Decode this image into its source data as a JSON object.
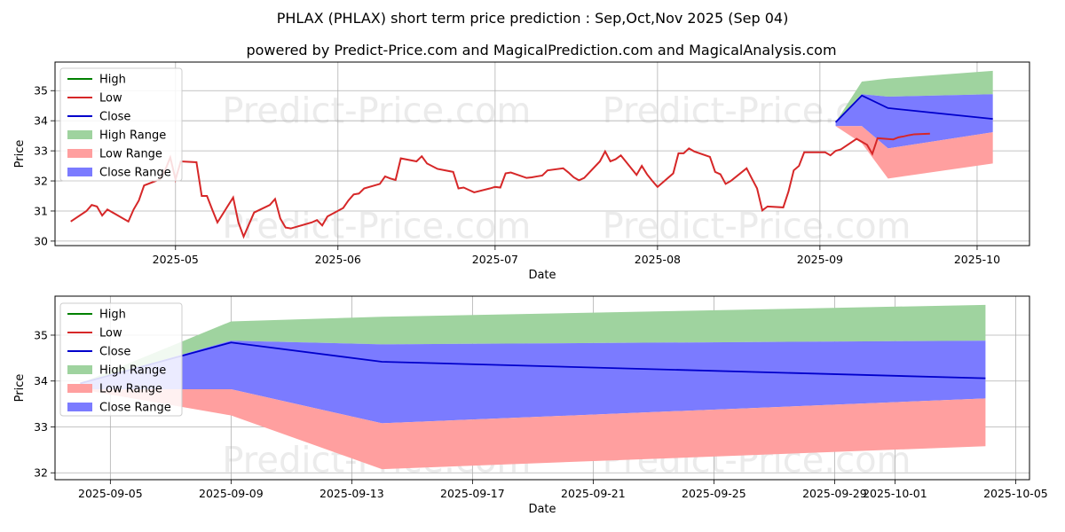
{
  "title": "PHLAX (PHLAX) short term price prediction : Sep,Oct,Nov 2025 (Sep 04)",
  "subtitle": "powered by Predict-Price.com and MagicalPrediction.com and MagicalAnalysis.com",
  "watermark": "Predict-Price.com",
  "colors": {
    "high": "#008000",
    "low": "#d62728",
    "close": "#0000cc",
    "high_range": "#9fd39f",
    "low_range": "#ff9f9f",
    "close_range": "#7b7bff",
    "grid": "#b0b0b0"
  },
  "chart_data": [
    {
      "type": "line",
      "name": "history",
      "xlabel": "Date",
      "ylabel": "Price",
      "xlim": [
        "2025-04-08",
        "2025-10-11"
      ],
      "ylim": [
        29.85,
        35.95
      ],
      "x_ticks": [
        "2025-05-01",
        "2025-06-01",
        "2025-07-01",
        "2025-08-01",
        "2025-09-01",
        "2025-10-01"
      ],
      "x_tick_labels": [
        "2025-05",
        "2025-06",
        "2025-07",
        "2025-08",
        "2025-09",
        "2025-10"
      ],
      "y_ticks": [
        30,
        31,
        32,
        33,
        34,
        35
      ],
      "grid": true,
      "legend": [
        "High",
        "Low",
        "Close",
        "High Range",
        "Low Range",
        "Close Range"
      ],
      "legend_position": "upper-left",
      "history_low": [
        [
          "2025-04-11",
          30.65
        ],
        [
          "2025-04-14",
          31.0
        ],
        [
          "2025-04-15",
          31.2
        ],
        [
          "2025-04-16",
          31.15
        ],
        [
          "2025-04-17",
          30.85
        ],
        [
          "2025-04-18",
          31.05
        ],
        [
          "2025-04-22",
          30.65
        ],
        [
          "2025-04-23",
          31.05
        ],
        [
          "2025-04-24",
          31.35
        ],
        [
          "2025-04-25",
          31.85
        ],
        [
          "2025-04-28",
          32.05
        ],
        [
          "2025-04-29",
          32.35
        ],
        [
          "2025-04-30",
          32.78
        ],
        [
          "2025-05-01",
          32.05
        ],
        [
          "2025-05-02",
          32.65
        ],
        [
          "2025-05-05",
          32.62
        ],
        [
          "2025-05-06",
          31.5
        ],
        [
          "2025-05-07",
          31.5
        ],
        [
          "2025-05-08",
          31.05
        ],
        [
          "2025-05-09",
          30.62
        ],
        [
          "2025-05-12",
          31.45
        ],
        [
          "2025-05-13",
          30.62
        ],
        [
          "2025-05-14",
          30.15
        ],
        [
          "2025-05-16",
          30.95
        ],
        [
          "2025-05-19",
          31.2
        ],
        [
          "2025-05-20",
          31.4
        ],
        [
          "2025-05-21",
          30.75
        ],
        [
          "2025-05-22",
          30.45
        ],
        [
          "2025-05-23",
          30.42
        ],
        [
          "2025-05-27",
          30.62
        ],
        [
          "2025-05-28",
          30.7
        ],
        [
          "2025-05-29",
          30.52
        ],
        [
          "2025-05-30",
          30.82
        ],
        [
          "2025-06-02",
          31.1
        ],
        [
          "2025-06-03",
          31.35
        ],
        [
          "2025-06-04",
          31.55
        ],
        [
          "2025-06-05",
          31.58
        ],
        [
          "2025-06-06",
          31.75
        ],
        [
          "2025-06-09",
          31.9
        ],
        [
          "2025-06-10",
          32.15
        ],
        [
          "2025-06-11",
          32.08
        ],
        [
          "2025-06-12",
          32.03
        ],
        [
          "2025-06-13",
          32.75
        ],
        [
          "2025-06-16",
          32.65
        ],
        [
          "2025-06-17",
          32.82
        ],
        [
          "2025-06-18",
          32.58
        ],
        [
          "2025-06-20",
          32.4
        ],
        [
          "2025-06-23",
          32.3
        ],
        [
          "2025-06-24",
          31.75
        ],
        [
          "2025-06-25",
          31.78
        ],
        [
          "2025-06-26",
          31.7
        ],
        [
          "2025-06-27",
          31.62
        ],
        [
          "2025-06-30",
          31.75
        ],
        [
          "2025-07-01",
          31.8
        ],
        [
          "2025-07-02",
          31.78
        ],
        [
          "2025-07-03",
          32.25
        ],
        [
          "2025-07-04",
          32.28
        ],
        [
          "2025-07-07",
          32.1
        ],
        [
          "2025-07-08",
          32.12
        ],
        [
          "2025-07-09",
          32.15
        ],
        [
          "2025-07-10",
          32.18
        ],
        [
          "2025-07-11",
          32.35
        ],
        [
          "2025-07-14",
          32.42
        ],
        [
          "2025-07-15",
          32.28
        ],
        [
          "2025-07-16",
          32.12
        ],
        [
          "2025-07-17",
          32.02
        ],
        [
          "2025-07-18",
          32.1
        ],
        [
          "2025-07-21",
          32.65
        ],
        [
          "2025-07-22",
          32.98
        ],
        [
          "2025-07-23",
          32.65
        ],
        [
          "2025-07-24",
          32.72
        ],
        [
          "2025-07-25",
          32.85
        ],
        [
          "2025-07-28",
          32.2
        ],
        [
          "2025-07-29",
          32.5
        ],
        [
          "2025-07-30",
          32.22
        ],
        [
          "2025-07-31",
          32.0
        ],
        [
          "2025-08-01",
          31.8
        ],
        [
          "2025-08-04",
          32.25
        ],
        [
          "2025-08-05",
          32.92
        ],
        [
          "2025-08-06",
          32.92
        ],
        [
          "2025-08-07",
          33.08
        ],
        [
          "2025-08-08",
          32.98
        ],
        [
          "2025-08-11",
          32.8
        ],
        [
          "2025-08-12",
          32.3
        ],
        [
          "2025-08-13",
          32.22
        ],
        [
          "2025-08-14",
          31.9
        ],
        [
          "2025-08-15",
          32.0
        ],
        [
          "2025-08-18",
          32.42
        ],
        [
          "2025-08-19",
          32.08
        ],
        [
          "2025-08-20",
          31.75
        ],
        [
          "2025-08-21",
          31.02
        ],
        [
          "2025-08-22",
          31.15
        ],
        [
          "2025-08-25",
          31.12
        ],
        [
          "2025-08-26",
          31.65
        ],
        [
          "2025-08-27",
          32.35
        ],
        [
          "2025-08-28",
          32.5
        ],
        [
          "2025-08-29",
          32.95
        ],
        [
          "2025-09-02",
          32.95
        ],
        [
          "2025-09-03",
          32.85
        ],
        [
          "2025-09-04",
          33.0
        ],
        [
          "2025-09-05",
          33.05
        ],
        [
          "2025-09-08",
          33.4
        ],
        [
          "2025-09-10",
          33.2
        ],
        [
          "2025-09-11",
          32.9
        ],
        [
          "2025-09-12",
          33.42
        ],
        [
          "2025-09-15",
          33.38
        ],
        [
          "2025-09-16",
          33.45
        ],
        [
          "2025-09-17",
          33.48
        ],
        [
          "2025-09-18",
          33.52
        ],
        [
          "2025-09-19",
          33.55
        ],
        [
          "2025-09-22",
          33.57
        ]
      ]
    },
    {
      "type": "line",
      "name": "forecast",
      "xlabel": "Date",
      "ylabel": "Price",
      "xlim": [
        "2025-09-03 04:00",
        "2025-10-05 11:00"
      ],
      "ylim": [
        31.85,
        35.85
      ],
      "x_ticks": [
        "2025-09-05",
        "2025-09-09",
        "2025-09-13",
        "2025-09-17",
        "2025-09-21",
        "2025-09-25",
        "2025-09-29",
        "2025-10-01",
        "2025-10-05"
      ],
      "y_ticks": [
        32,
        33,
        34,
        35
      ],
      "grid": true,
      "legend": [
        "High",
        "Low",
        "Close",
        "High Range",
        "Low Range",
        "Close Range"
      ],
      "legend_position": "upper-left",
      "forecast_dates": [
        "2025-09-04",
        "2025-09-09",
        "2025-09-14",
        "2025-10-04"
      ],
      "close": [
        33.95,
        34.84,
        34.42,
        34.06
      ],
      "high_range_upper": [
        33.95,
        35.3,
        35.4,
        35.66
      ],
      "high_range_lower": [
        33.95,
        34.88,
        34.8,
        34.88
      ],
      "close_range_upper": [
        33.95,
        34.88,
        34.8,
        34.88
      ],
      "close_range_lower": [
        33.82,
        33.82,
        33.08,
        33.62
      ],
      "low_range_upper": [
        33.82,
        33.82,
        33.08,
        33.62
      ],
      "low_range_lower": [
        33.82,
        33.25,
        32.08,
        32.58
      ]
    }
  ]
}
